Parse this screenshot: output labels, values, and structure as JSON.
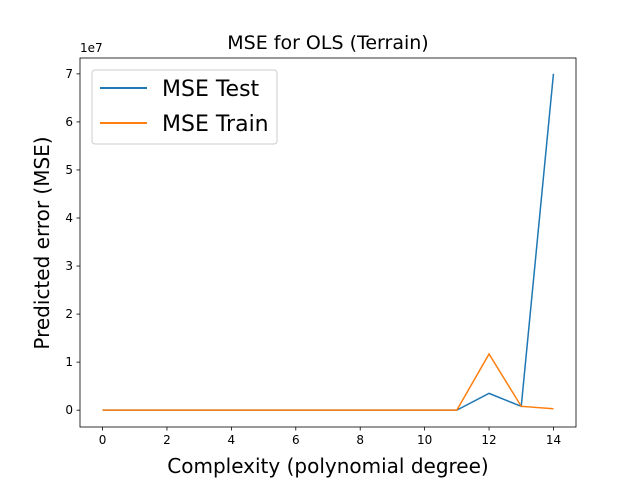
{
  "chart_data": {
    "type": "line",
    "title": "MSE for OLS (Terrain)",
    "xlabel": "Complexity (polynomial degree)",
    "ylabel": "Predicted error (MSE)",
    "y_offset_label": "1e7",
    "x": [
      0,
      1,
      2,
      3,
      4,
      5,
      6,
      7,
      8,
      9,
      10,
      11,
      12,
      13,
      14
    ],
    "series": [
      {
        "name": "MSE Test",
        "color": "#1f77b4",
        "values": [
          0,
          0,
          0,
          0,
          0,
          0,
          0,
          0,
          0,
          0,
          0,
          0,
          0.35,
          0.08,
          7.0
        ]
      },
      {
        "name": "MSE Train",
        "color": "#ff7f0e",
        "values": [
          0,
          0,
          0,
          0,
          0,
          0,
          0,
          0,
          0,
          0,
          0,
          0,
          1.17,
          0.08,
          0.03
        ]
      }
    ],
    "xlim": [
      -0.7,
      14.7
    ],
    "ylim": [
      -0.35,
      7.33
    ],
    "xticks": [
      0,
      2,
      4,
      6,
      8,
      10,
      12,
      14
    ],
    "yticks": [
      0,
      1,
      2,
      3,
      4,
      5,
      6,
      7
    ],
    "legend": "upper left",
    "grid": false
  }
}
